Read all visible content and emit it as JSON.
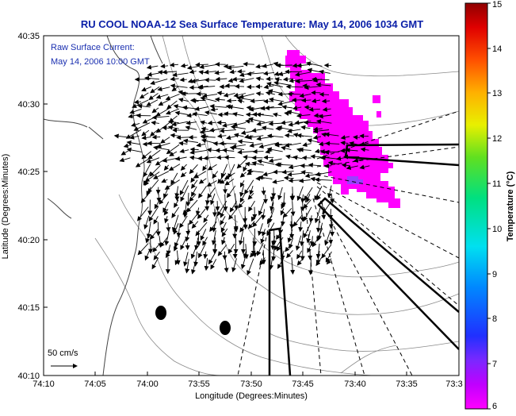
{
  "title": "RU COOL  NOAA-12  Sea Surface Temperature:  May 14, 2006 1034 GMT",
  "colors": {
    "title": "#0a1fa8",
    "inset_text": "#1a2fb0",
    "sst_patch": "#ff00ff"
  },
  "map": {
    "xlabel": "Longitude (Degrees:Minutes)",
    "ylabel": "Latitude (Degrees:Minutes)",
    "lon_ticks": [
      "74:10",
      "74:05",
      "74:00",
      "73:55",
      "73:50",
      "73:45",
      "73:40",
      "73:35",
      "73:3"
    ],
    "lat_ticks": [
      "40:35",
      "40:30",
      "40:25",
      "40:20",
      "40:15",
      "40:10"
    ],
    "current_label_line1": "Raw Surface Current:",
    "current_label_line2": "May 14, 2006 10:00 GMT",
    "scale_label": "50 cm/s"
  },
  "colorbar": {
    "label": "Temperature (°C)",
    "ticks": [
      "15",
      "14",
      "13",
      "12",
      "11",
      "10",
      "9",
      "8",
      "7",
      "6"
    ],
    "range": [
      6,
      15
    ]
  }
}
